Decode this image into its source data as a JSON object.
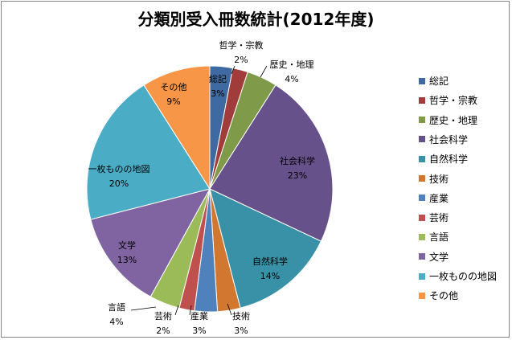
{
  "chart_data": {
    "type": "pie",
    "title": "分類別受入冊数統計(2012年度)",
    "legend_position": "right",
    "categories": [
      "総記",
      "哲学・宗教",
      "歴史・地理",
      "社会科学",
      "自然科学",
      "技術",
      "産業",
      "芸術",
      "言語",
      "文学",
      "一枚ものの地図",
      "その他"
    ],
    "values": [
      3,
      2,
      4,
      23,
      14,
      3,
      3,
      2,
      4,
      13,
      20,
      9
    ],
    "value_labels": [
      "3%",
      "2%",
      "4%",
      "23%",
      "14%",
      "3%",
      "3%",
      "2%",
      "4%",
      "13%",
      "20%",
      "9%"
    ],
    "colors": [
      "#3E6AA1",
      "#A03C3A",
      "#7F9A48",
      "#67518A",
      "#3891A7",
      "#D1772F",
      "#4F81BD",
      "#C0504D",
      "#9BBB59",
      "#8064A2",
      "#4BACC6",
      "#F79646"
    ]
  }
}
